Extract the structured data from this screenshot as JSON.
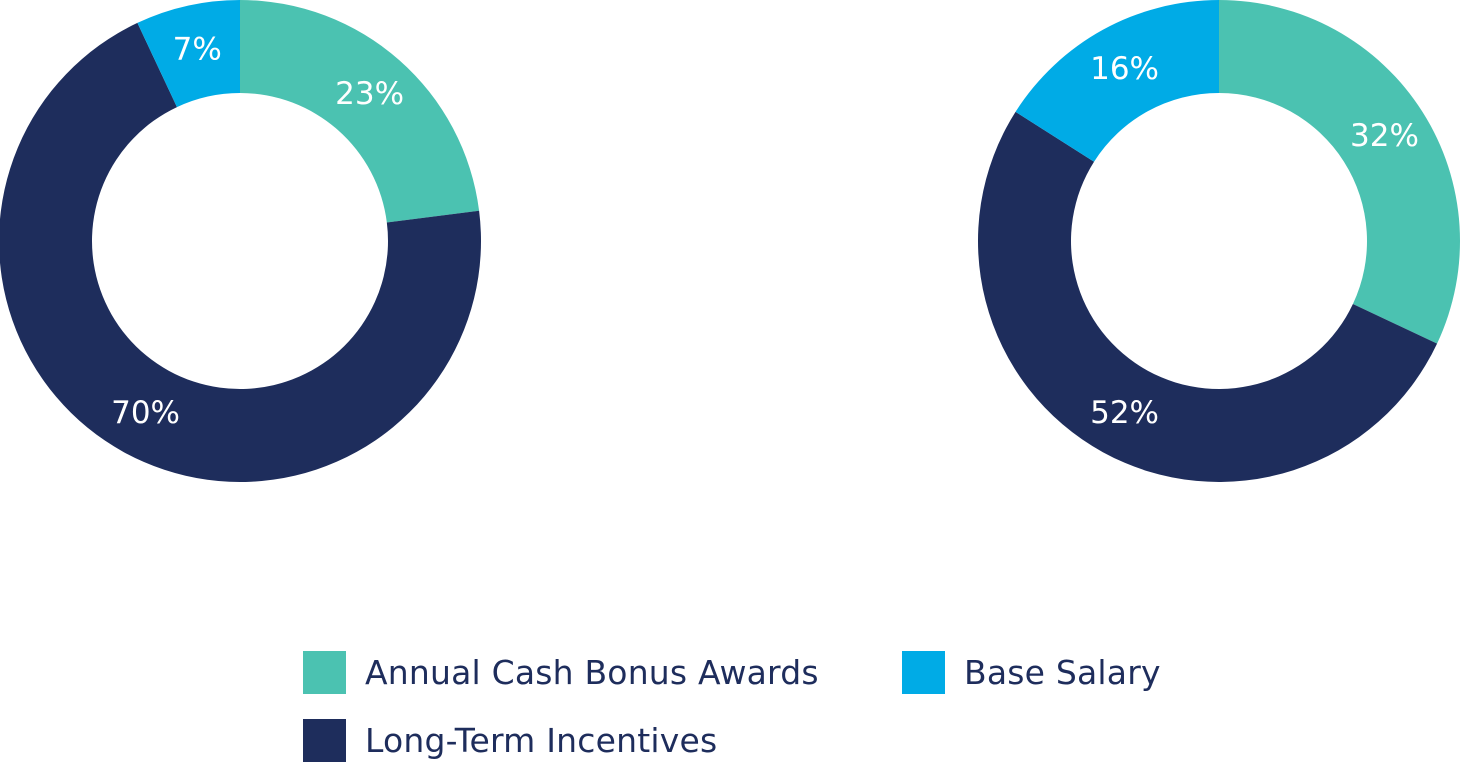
{
  "chart_data": [
    {
      "type": "pie",
      "variant": "donut",
      "categories": [
        "Annual Cash Bonus Awards",
        "Long-Term Incentives",
        "Base Salary"
      ],
      "values": [
        23,
        70,
        7
      ],
      "labels": [
        "23%",
        "70%",
        "7%"
      ]
    },
    {
      "type": "pie",
      "variant": "donut",
      "categories": [
        "Annual Cash Bonus Awards",
        "Long-Term Incentives",
        "Base Salary"
      ],
      "values": [
        32,
        52,
        16
      ],
      "labels": [
        "32%",
        "52%",
        "16%"
      ]
    }
  ],
  "legend": {
    "placement": "bottom",
    "items": [
      {
        "label": "Annual Cash Bonus Awards",
        "color": "#4bc2b1"
      },
      {
        "label": "Base Salary",
        "color": "#00abe6"
      },
      {
        "label": "Long-Term Incentives",
        "color": "#1e2d5c"
      }
    ]
  },
  "colors": {
    "Annual Cash Bonus Awards": "#4bc2b1",
    "Long-Term Incentives": "#1e2d5c",
    "Base Salary": "#00abe6"
  }
}
